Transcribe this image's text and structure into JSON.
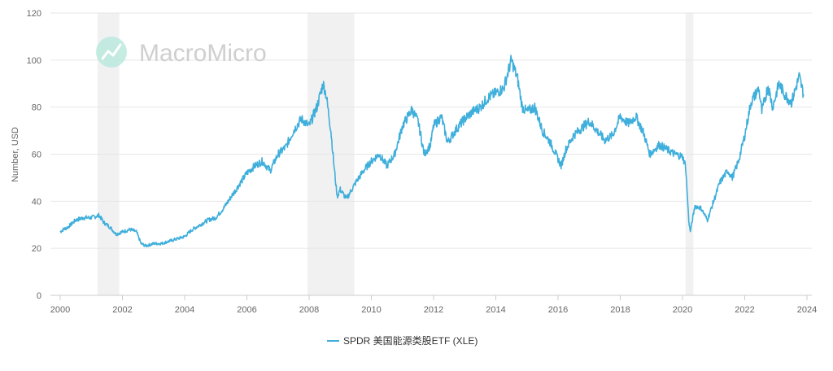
{
  "chart_data": {
    "type": "line",
    "ylabel": "Number, USD",
    "xlim": [
      2000,
      2024
    ],
    "ylim": [
      0,
      120
    ],
    "yticks": [
      0,
      20,
      40,
      60,
      80,
      100,
      120
    ],
    "xticks": [
      "2000",
      "2002",
      "2004",
      "2006",
      "2008",
      "2010",
      "2012",
      "2014",
      "2016",
      "2018",
      "2020",
      "2022",
      "2024"
    ],
    "grid": "horizontal",
    "legend_position": "bottom-center",
    "recessions": [
      [
        2001.2,
        2001.9
      ],
      [
        2007.95,
        2009.45
      ],
      [
        2020.1,
        2020.35
      ]
    ],
    "series": [
      {
        "name": "SPDR 美国能源类股ETF (XLE)",
        "color": "#3eaedb",
        "x": [
          2000.0,
          2000.1,
          2000.25,
          2000.5,
          2000.75,
          2001.0,
          2001.25,
          2001.4,
          2001.6,
          2001.8,
          2002.0,
          2002.25,
          2002.45,
          2002.6,
          2002.75,
          2003.0,
          2003.25,
          2003.5,
          2003.75,
          2004.0,
          2004.25,
          2004.5,
          2004.75,
          2005.0,
          2005.25,
          2005.5,
          2005.75,
          2006.0,
          2006.25,
          2006.5,
          2006.75,
          2007.0,
          2007.25,
          2007.5,
          2007.75,
          2008.0,
          2008.25,
          2008.45,
          2008.55,
          2008.7,
          2008.8,
          2008.9,
          2009.0,
          2009.2,
          2009.5,
          2009.75,
          2010.0,
          2010.25,
          2010.5,
          2010.75,
          2011.0,
          2011.3,
          2011.5,
          2011.7,
          2011.9,
          2012.0,
          2012.25,
          2012.45,
          2012.75,
          2013.0,
          2013.25,
          2013.5,
          2013.75,
          2014.0,
          2014.25,
          2014.5,
          2014.7,
          2014.85,
          2015.0,
          2015.25,
          2015.5,
          2015.75,
          2016.0,
          2016.1,
          2016.25,
          2016.5,
          2016.75,
          2017.0,
          2017.25,
          2017.5,
          2017.75,
          2018.0,
          2018.25,
          2018.5,
          2018.75,
          2018.95,
          2019.25,
          2019.5,
          2019.75,
          2020.0,
          2020.1,
          2020.2,
          2020.25,
          2020.4,
          2020.6,
          2020.8,
          2020.95,
          2021.2,
          2021.45,
          2021.6,
          2021.8,
          2022.0,
          2022.2,
          2022.45,
          2022.55,
          2022.75,
          2022.9,
          2023.1,
          2023.3,
          2023.5,
          2023.75,
          2023.9
        ],
        "values": [
          27,
          28,
          29,
          32,
          33,
          33,
          34,
          31,
          29,
          26,
          27,
          28,
          27,
          22,
          21,
          22,
          22,
          23,
          24,
          25,
          28,
          30,
          32,
          33,
          37,
          42,
          47,
          52,
          55,
          57,
          53,
          60,
          63,
          70,
          75,
          72,
          80,
          90,
          85,
          70,
          55,
          42,
          45,
          41,
          48,
          53,
          57,
          60,
          55,
          60,
          72,
          79,
          74,
          60,
          64,
          72,
          76,
          65,
          71,
          75,
          78,
          80,
          84,
          86,
          88,
          100,
          92,
          80,
          78,
          80,
          70,
          65,
          58,
          55,
          62,
          68,
          71,
          74,
          70,
          66,
          68,
          76,
          73,
          76,
          69,
          60,
          64,
          62,
          60,
          59,
          55,
          32,
          27,
          38,
          37,
          32,
          38,
          48,
          53,
          50,
          57,
          68,
          82,
          88,
          78,
          89,
          80,
          90,
          85,
          82,
          93,
          85
        ]
      }
    ]
  },
  "watermark": {
    "text": "MacroMicro"
  }
}
